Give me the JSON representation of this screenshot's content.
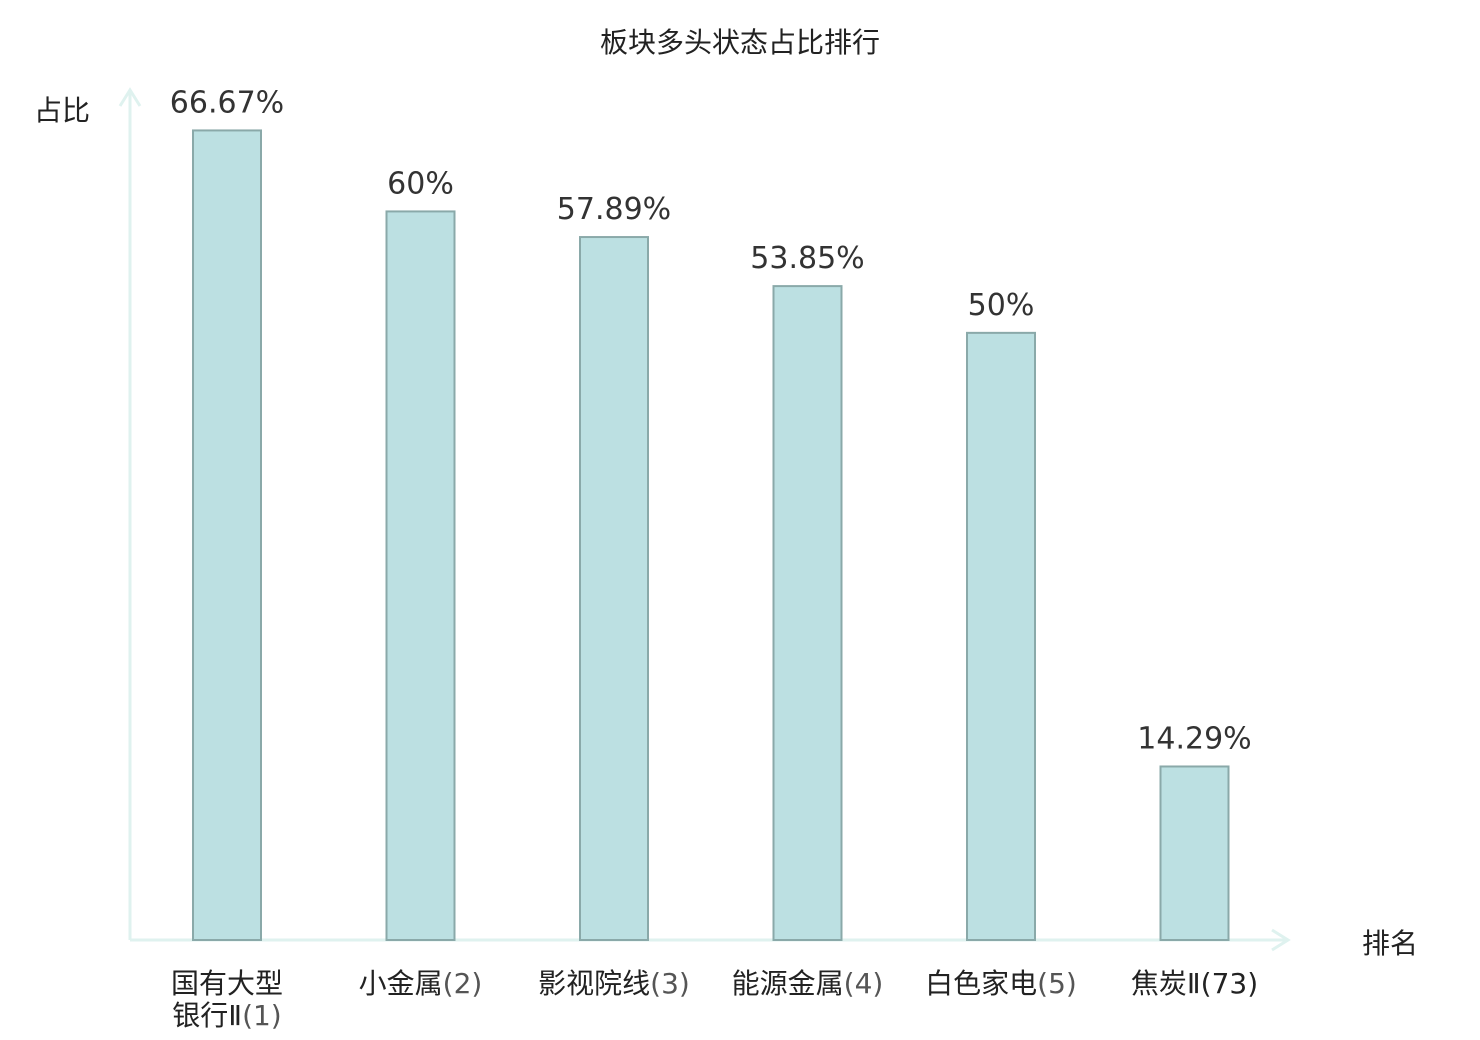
{
  "chart_data": {
    "type": "bar",
    "title": "板块多头状态占比排行",
    "ylabel": "占比",
    "xlabel": "排名",
    "ylim": [
      0,
      70
    ],
    "grid": false,
    "categories": [
      {
        "lines": [
          "国有大型",
          "银行Ⅱ"
        ],
        "rank": "(1)",
        "highlight": false
      },
      {
        "lines": [
          "小金属"
        ],
        "rank": "(2)",
        "highlight": false
      },
      {
        "lines": [
          "影视院线"
        ],
        "rank": "(3)",
        "highlight": false
      },
      {
        "lines": [
          "能源金属"
        ],
        "rank": "(4)",
        "highlight": false
      },
      {
        "lines": [
          "白色家电"
        ],
        "rank": "(5)",
        "highlight": false
      },
      {
        "lines": [
          "焦炭Ⅱ"
        ],
        "rank": "(73)",
        "highlight": true
      }
    ],
    "values": [
      66.67,
      60,
      57.89,
      53.85,
      50,
      14.29
    ],
    "value_labels": [
      "66.67%",
      "60%",
      "57.89%",
      "53.85%",
      "50%",
      "14.29%"
    ],
    "colors": {
      "bar_fill": "#bce0e2",
      "bar_stroke": "#8aa9a9",
      "axis": "#dff2ef",
      "highlight_text": "#e0201a"
    }
  }
}
